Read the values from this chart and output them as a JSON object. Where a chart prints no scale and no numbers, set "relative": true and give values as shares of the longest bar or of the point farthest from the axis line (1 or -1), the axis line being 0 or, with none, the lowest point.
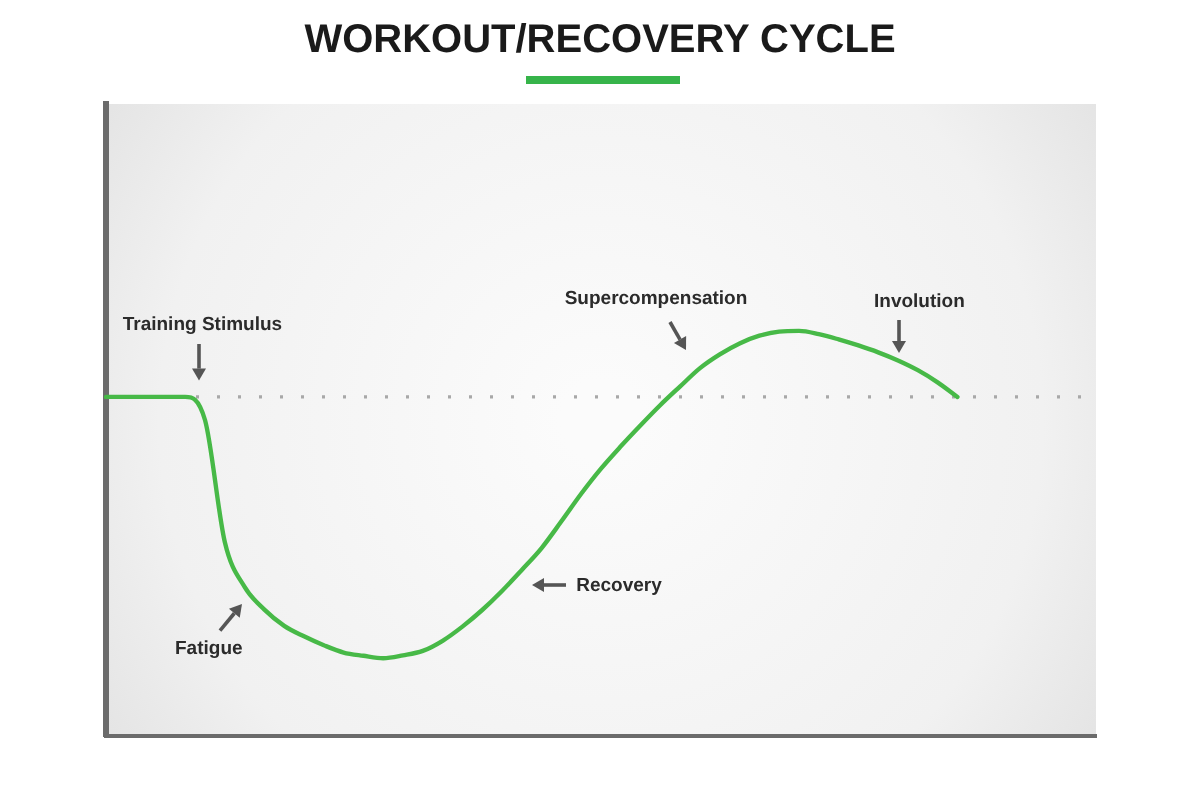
{
  "chart_data": {
    "type": "line",
    "title": "WORKOUT/RECOVERY CYCLE",
    "relative": true,
    "categories": [
      null,
      null,
      null,
      null,
      null,
      null,
      null,
      null,
      null,
      null,
      null,
      null,
      null,
      null,
      null,
      null,
      null,
      null,
      null,
      null,
      null,
      null,
      null,
      null,
      null,
      null,
      null,
      null,
      null,
      null,
      null,
      null,
      null,
      null,
      null,
      null,
      null,
      null,
      null,
      null,
      null,
      null,
      null,
      null,
      null,
      null,
      null,
      null,
      null,
      null,
      null
    ],
    "values": [
      0.837,
      0.837,
      0.837,
      0.837,
      0.837,
      0.78,
      0.479,
      0.368,
      0.312,
      0.272,
      0.246,
      0.224,
      0.206,
      0.198,
      0.192,
      0.199,
      0.21,
      0.235,
      0.27,
      0.311,
      0.358,
      0.41,
      0.464,
      0.53,
      0.598,
      0.66,
      0.715,
      0.767,
      0.817,
      0.863,
      0.908,
      0.942,
      0.969,
      0.988,
      0.998,
      1.0,
      0.992,
      0.979,
      0.964,
      0.947,
      0.927,
      0.903,
      0.873,
      0.837,
      null,
      null,
      null,
      null,
      null,
      null,
      null
    ],
    "color": "#47b947",
    "ref_lines": [
      {
        "axis": "y",
        "value": 0.837,
        "color": "#a8a8a8",
        "line_style": "dotted"
      }
    ],
    "annotations": [
      "Training Stimulus",
      "Fatigue",
      "Recovery",
      "Supercompensation",
      "Involution"
    ],
    "tick_labels": false,
    "marker": "none",
    "line_style": "solid"
  }
}
